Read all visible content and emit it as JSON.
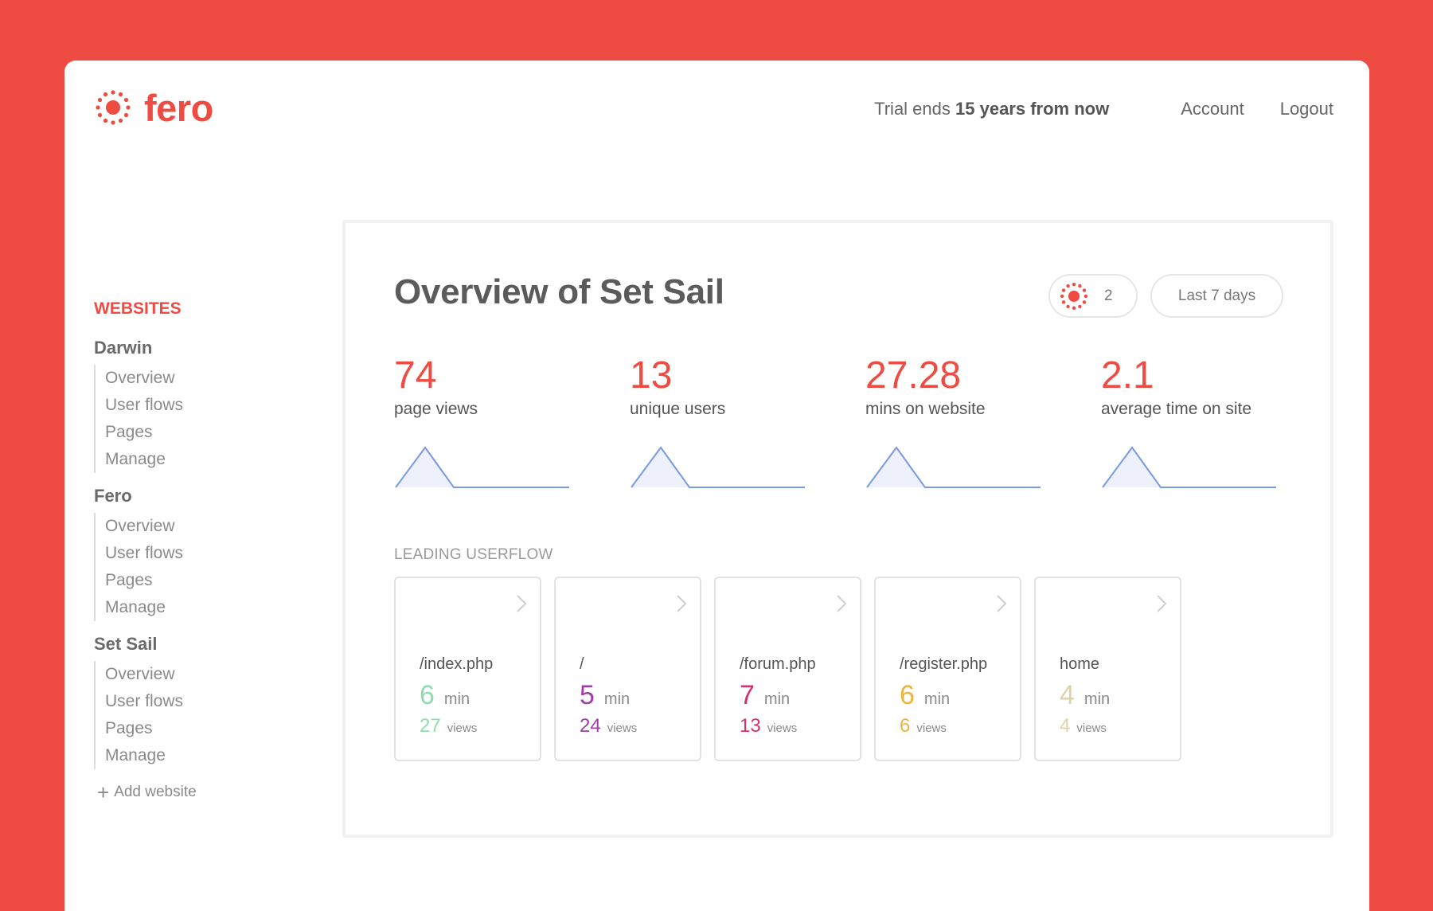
{
  "app": {
    "logo_text": "fero",
    "brand_color": "#ee4b42"
  },
  "header": {
    "trial_prefix": "Trial ends",
    "trial_bold": "15 years from now",
    "account_label": "Account",
    "logout_label": "Logout"
  },
  "sidebar": {
    "heading": "WEBSITES",
    "sites": [
      {
        "name": "Darwin",
        "links": [
          "Overview",
          "User flows",
          "Pages",
          "Manage"
        ]
      },
      {
        "name": "Fero",
        "links": [
          "Overview",
          "User flows",
          "Pages",
          "Manage"
        ]
      },
      {
        "name": "Set Sail",
        "links": [
          "Overview",
          "User flows",
          "Pages",
          "Manage"
        ]
      }
    ],
    "add_label": "Add website"
  },
  "main": {
    "title": "Overview of Set Sail",
    "live_visitors": "2",
    "date_range": "Last 7 days",
    "stats": [
      {
        "value": "74",
        "label": "page views"
      },
      {
        "value": "13",
        "label": "unique users"
      },
      {
        "value": "27.28",
        "label": "mins on website"
      },
      {
        "value": "2.1",
        "label": "average time on site"
      }
    ],
    "sparkline_color": "#7a9be0",
    "sparkline_fill": "#eef1fb",
    "section_label": "LEADING USERFLOW",
    "userflows": [
      {
        "path": "/index.php",
        "minutes": "6",
        "min_unit": "min",
        "views": "27",
        "views_unit": "views",
        "color": "#8fdcb0"
      },
      {
        "path": "/",
        "minutes": "5",
        "min_unit": "min",
        "views": "24",
        "views_unit": "views",
        "color": "#a23ea8"
      },
      {
        "path": "/forum.php",
        "minutes": "7",
        "min_unit": "min",
        "views": "13",
        "views_unit": "views",
        "color": "#d6306f"
      },
      {
        "path": "/register.php",
        "minutes": "6",
        "min_unit": "min",
        "views": "6",
        "views_unit": "views",
        "color": "#f0b43c"
      },
      {
        "path": "home",
        "minutes": "4",
        "min_unit": "min",
        "views": "4",
        "views_unit": "views",
        "color": "#dfd2a8"
      }
    ]
  }
}
